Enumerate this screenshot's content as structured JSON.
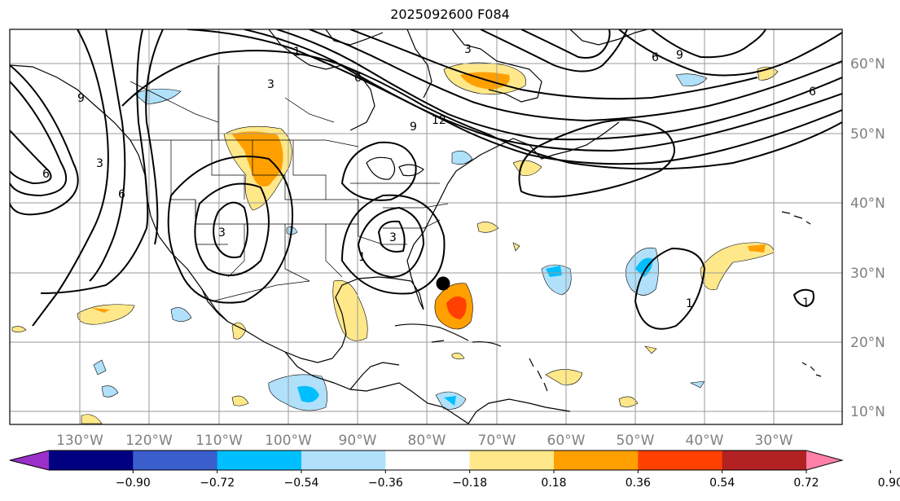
{
  "title": "2025092600 F084",
  "map": {
    "lon_labels": [
      "130°W",
      "120°W",
      "110°W",
      "100°W",
      "90°W",
      "80°W",
      "70°W",
      "60°W",
      "50°W",
      "40°W",
      "30°W"
    ],
    "lat_labels": [
      "60°N",
      "50°N",
      "40°N",
      "30°N",
      "20°N",
      "10°N"
    ],
    "contour_labels": [
      "6",
      "9",
      "6",
      "3",
      "1",
      "6",
      "9",
      "12",
      "3",
      "6",
      "9",
      "6",
      "3",
      "1",
      "3",
      "1",
      "1",
      "3"
    ],
    "marker": "black-dot-storm-center"
  },
  "colorbar": {
    "ticks": [
      "−0.90",
      "−0.72",
      "−0.54",
      "−0.36",
      "−0.18",
      "0.18",
      "0.36",
      "0.54",
      "0.72",
      "0.90"
    ],
    "colors": [
      "#9b30c8",
      "#000080",
      "#3a5fcd",
      "#00bfff",
      "#b0e0fa",
      "#ffffff",
      "#ffe88a",
      "#ffa000",
      "#ff4000",
      "#b22222",
      "#ff80a8"
    ]
  }
}
